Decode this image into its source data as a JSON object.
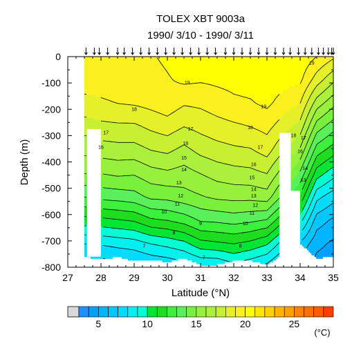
{
  "chart_data": {
    "type": "heatmap",
    "title": "TOLEX XBT 9003a",
    "subtitle": "1990/ 3/10 - 1990/ 3/11",
    "xlabel": "Latitude (°N)",
    "ylabel": "Depth (m)",
    "xlim": [
      27,
      35
    ],
    "ylim": [
      -800,
      0
    ],
    "x_ticks": [
      "27",
      "28",
      "29",
      "30",
      "31",
      "32",
      "33",
      "34",
      "35"
    ],
    "y_ticks": [
      "0",
      "-100",
      "-200",
      "-300",
      "-400",
      "-500",
      "-600",
      "-700",
      "-800"
    ],
    "colorbar": {
      "unit": "(°C)",
      "tick_labels": [
        "5",
        "10",
        "15",
        "20",
        "25"
      ],
      "tick_values": [
        5,
        10,
        15,
        20,
        25
      ],
      "levels": [
        {
          "lo": 3,
          "hi": 4,
          "color": "#1e90ff"
        },
        {
          "lo": 4,
          "hi": 5,
          "color": "#00a0ff"
        },
        {
          "lo": 5,
          "hi": 6,
          "color": "#00b4ff"
        },
        {
          "lo": 6,
          "hi": 7,
          "color": "#00c8ff"
        },
        {
          "lo": 7,
          "hi": 8,
          "color": "#00dcff"
        },
        {
          "lo": 8,
          "hi": 9,
          "color": "#00f0f0"
        },
        {
          "lo": 9,
          "hi": 10,
          "color": "#00ffd2"
        },
        {
          "lo": 10,
          "hi": 11,
          "color": "#00e632"
        },
        {
          "lo": 11,
          "hi": 12,
          "color": "#1edc1e"
        },
        {
          "lo": 12,
          "hi": 13,
          "color": "#3cf03c"
        },
        {
          "lo": 13,
          "hi": 14,
          "color": "#5af05a"
        },
        {
          "lo": 14,
          "hi": 15,
          "color": "#78f03c"
        },
        {
          "lo": 15,
          "hi": 16,
          "color": "#96f03c"
        },
        {
          "lo": 16,
          "hi": 17,
          "color": "#aaf03c"
        },
        {
          "lo": 17,
          "hi": 18,
          "color": "#c8f032"
        },
        {
          "lo": 18,
          "hi": 19,
          "color": "#e6f028"
        },
        {
          "lo": 19,
          "hi": 20,
          "color": "#faf01e"
        },
        {
          "lo": 20,
          "hi": 21,
          "color": "#ffff00"
        },
        {
          "lo": 21,
          "hi": 22,
          "color": "#ffe600"
        },
        {
          "lo": 22,
          "hi": 23,
          "color": "#ffd200"
        },
        {
          "lo": 23,
          "hi": 24,
          "color": "#ffb400"
        },
        {
          "lo": 24,
          "hi": 25,
          "color": "#ffa000"
        },
        {
          "lo": 25,
          "hi": 26,
          "color": "#ff8200"
        },
        {
          "lo": 26,
          "hi": 27,
          "color": "#ff6e00"
        },
        {
          "lo": 27,
          "hi": 28,
          "color": "#ff5a00"
        },
        {
          "lo": 28,
          "hi": 29,
          "color": "#ff3c00"
        }
      ]
    },
    "stations": [
      27.55,
      27.8,
      27.95,
      28.2,
      28.5,
      28.7,
      28.95,
      29.2,
      29.45,
      29.7,
      29.95,
      30.2,
      30.45,
      30.7,
      30.95,
      31.2,
      31.45,
      31.75,
      32.0,
      32.25,
      32.5,
      32.75,
      33.0,
      33.25,
      33.5,
      33.7,
      33.95,
      34.15,
      34.35,
      34.55,
      34.7,
      34.85,
      34.95,
      35.0
    ],
    "data_columns": [
      {
        "lat": 27.5,
        "max_depth": 760,
        "temps": [
          19.5,
          19.3,
          18.8,
          17.4,
          16.3,
          15.0,
          13.0,
          10.6,
          8.0,
          6.3
        ]
      },
      {
        "lat": 28.0,
        "max_depth": 770,
        "temps": [
          19.6,
          19.3,
          18.9,
          17.7,
          16.5,
          15.0,
          13.3,
          10.7,
          8.1,
          6.3
        ]
      },
      {
        "lat": 28.5,
        "max_depth": 760,
        "temps": [
          19.7,
          19.4,
          19.0,
          17.8,
          16.6,
          15.2,
          13.4,
          10.9,
          8.3,
          6.5
        ]
      },
      {
        "lat": 29.0,
        "max_depth": 775,
        "temps": [
          19.9,
          19.5,
          19.1,
          17.8,
          16.6,
          15.1,
          13.6,
          11.1,
          8.5,
          6.6
        ]
      },
      {
        "lat": 29.5,
        "max_depth": 770,
        "temps": [
          19.9,
          19.6,
          19.3,
          18.2,
          17.0,
          15.6,
          14.2,
          11.8,
          9.0,
          6.9
        ]
      },
      {
        "lat": 30.0,
        "max_depth": 780,
        "temps": [
          20.2,
          19.9,
          19.6,
          18.5,
          17.2,
          15.8,
          14.3,
          12.0,
          9.3,
          7.1
        ]
      },
      {
        "lat": 30.5,
        "max_depth": 765,
        "temps": [
          20.6,
          20.2,
          19.1,
          18.0,
          16.7,
          15.6,
          14.6,
          12.4,
          9.7,
          7.4
        ]
      },
      {
        "lat": 31.0,
        "max_depth": 790,
        "temps": [
          20.4,
          20.1,
          19.2,
          18.3,
          17.3,
          16.0,
          14.9,
          13.1,
          10.6,
          7.9
        ]
      },
      {
        "lat": 31.5,
        "max_depth": 790,
        "temps": [
          20.5,
          20.2,
          19.5,
          18.6,
          17.6,
          16.4,
          15.2,
          13.2,
          10.8,
          7.9
        ]
      },
      {
        "lat": 32.0,
        "max_depth": 775,
        "temps": [
          20.6,
          20.3,
          19.8,
          18.8,
          17.8,
          16.6,
          15.3,
          13.4,
          11.0,
          8.6
        ]
      },
      {
        "lat": 32.5,
        "max_depth": 775,
        "temps": [
          20.7,
          20.4,
          19.9,
          19.0,
          17.9,
          16.7,
          15.3,
          13.2,
          10.7,
          8.1
        ]
      },
      {
        "lat": 33.0,
        "max_depth": 790,
        "temps": [
          20.8,
          20.5,
          20.2,
          19.3,
          18.4,
          17.0,
          15.5,
          12.9,
          10.1,
          7.6
        ]
      },
      {
        "lat": 34.0,
        "max_depth": 710,
        "temps": [
          20.8,
          20.2,
          19.0,
          17.6,
          15.8,
          13.8,
          11.8,
          9.4,
          6.8,
          5.3
        ]
      },
      {
        "lat": 34.5,
        "max_depth": 765,
        "temps": [
          20.0,
          18.5,
          16.5,
          14.5,
          12.5,
          10.5,
          8.3,
          6.5,
          5.3,
          4.5
        ]
      },
      {
        "lat": 35.0,
        "max_depth": 760,
        "temps": [
          19.2,
          17.2,
          15.3,
          13.4,
          11.5,
          9.4,
          7.4,
          5.8,
          4.8,
          4.2
        ]
      }
    ],
    "gaps": [
      {
        "lat_from": 27.58,
        "lat_to": 27.95,
        "depth_from": 275,
        "depth_to": 760
      },
      {
        "lat_from": 27.95,
        "lat_to": 28.0,
        "depth_from": 275,
        "depth_to": 760
      },
      {
        "lat_from": 33.38,
        "lat_to": 33.72,
        "depth_from": 290,
        "depth_to": 800
      },
      {
        "lat_from": 33.72,
        "lat_to": 34.0,
        "depth_from": 510,
        "depth_to": 800
      }
    ],
    "contour_labels": [
      {
        "value": "19",
        "lat": 32.9,
        "depth": 190
      },
      {
        "value": "19",
        "lat": 30.6,
        "depth": 100
      },
      {
        "value": "19",
        "lat": 34.35,
        "depth": 25
      },
      {
        "value": "18",
        "lat": 29.0,
        "depth": 200
      },
      {
        "value": "18",
        "lat": 32.5,
        "depth": 270
      },
      {
        "value": "18",
        "lat": 33.8,
        "depth": 300
      },
      {
        "value": "17",
        "lat": 28.15,
        "depth": 290
      },
      {
        "value": "17",
        "lat": 30.7,
        "depth": 275
      },
      {
        "value": "17",
        "lat": 32.8,
        "depth": 345
      },
      {
        "value": "17",
        "lat": 34.1,
        "depth": 310
      },
      {
        "value": "16",
        "lat": 28.0,
        "depth": 345
      },
      {
        "value": "16",
        "lat": 30.55,
        "depth": 330
      },
      {
        "value": "16",
        "lat": 32.6,
        "depth": 410
      },
      {
        "value": "16",
        "lat": 34.0,
        "depth": 360
      },
      {
        "value": "15",
        "lat": 30.5,
        "depth": 385
      },
      {
        "value": "15",
        "lat": 32.55,
        "depth": 460
      },
      {
        "value": "14",
        "lat": 30.5,
        "depth": 430
      },
      {
        "value": "14",
        "lat": 32.6,
        "depth": 505
      },
      {
        "value": "14",
        "lat": 34.15,
        "depth": 425
      },
      {
        "value": "13",
        "lat": 30.35,
        "depth": 480
      },
      {
        "value": "13",
        "lat": 32.6,
        "depth": 530
      },
      {
        "value": "13",
        "lat": 34.1,
        "depth": 470
      },
      {
        "value": "12",
        "lat": 30.4,
        "depth": 530
      },
      {
        "value": "12",
        "lat": 32.65,
        "depth": 565
      },
      {
        "value": "11",
        "lat": 30.3,
        "depth": 560
      },
      {
        "value": "11",
        "lat": 32.55,
        "depth": 595
      },
      {
        "value": "10",
        "lat": 29.9,
        "depth": 590
      },
      {
        "value": "10",
        "lat": 32.35,
        "depth": 635
      },
      {
        "value": "9",
        "lat": 31.0,
        "depth": 635
      },
      {
        "value": "8",
        "lat": 30.2,
        "depth": 670
      },
      {
        "value": "8",
        "lat": 32.2,
        "depth": 720
      },
      {
        "value": "7",
        "lat": 29.3,
        "depth": 720
      },
      {
        "value": "7",
        "lat": 31.1,
        "depth": 765
      }
    ]
  }
}
